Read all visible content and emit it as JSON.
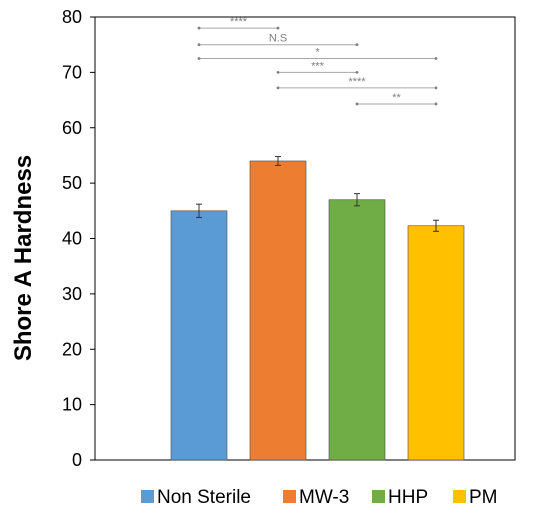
{
  "chart_data": {
    "type": "bar",
    "title": "",
    "xlabel": "",
    "ylabel": "Shore A Hardness",
    "ylim": [
      0,
      80
    ],
    "yticks": [
      0,
      10,
      20,
      30,
      40,
      50,
      60,
      70,
      80
    ],
    "grid": false,
    "legend_position": "bottom",
    "categories": [
      "Non Sterile",
      "MW-3",
      "HHP",
      "PM"
    ],
    "values": [
      45,
      54,
      47,
      42.3
    ],
    "errors": [
      1.2,
      0.8,
      1.1,
      1.0
    ],
    "colors": [
      "#5b9bd5",
      "#ed7d31",
      "#70ad47",
      "#ffc000"
    ],
    "significance": [
      {
        "from": 0,
        "to": 1,
        "y": 78,
        "label": "****"
      },
      {
        "from": 0,
        "to": 2,
        "y": 75,
        "label": "N.S"
      },
      {
        "from": 0,
        "to": 3,
        "y": 72.5,
        "label": "*"
      },
      {
        "from": 1,
        "to": 2,
        "y": 70,
        "label": "***"
      },
      {
        "from": 1,
        "to": 3,
        "y": 67.2,
        "label": "****"
      },
      {
        "from": 2,
        "to": 3,
        "y": 64.3,
        "label": "**"
      }
    ]
  }
}
